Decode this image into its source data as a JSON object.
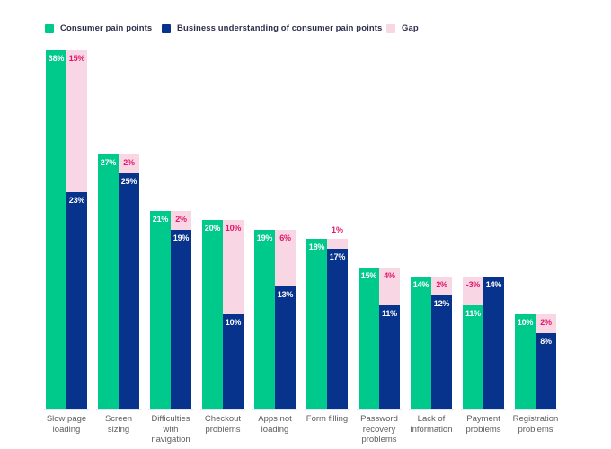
{
  "chart_data": {
    "type": "bar",
    "title": "",
    "categories": [
      "Slow page loading",
      "Screen sizing",
      "Difficulties with navigation",
      "Checkout problems",
      "Apps not loading",
      "Form filling",
      "Password recovery problems",
      "Lack of information",
      "Payment problems",
      "Registration problems"
    ],
    "series": [
      {
        "name": "Consumer pain points",
        "color": "#00c98c",
        "values": [
          38,
          27,
          21,
          20,
          19,
          18,
          15,
          14,
          11,
          10
        ]
      },
      {
        "name": "Business understanding of consumer pain points",
        "color": "#08338c",
        "values": [
          23,
          25,
          19,
          10,
          13,
          17,
          11,
          12,
          14,
          8
        ]
      },
      {
        "name": "Gap",
        "color": "#f8d6e4",
        "label_color": "#e2176b",
        "values": [
          15,
          2,
          2,
          10,
          6,
          1,
          4,
          2,
          -3,
          2
        ]
      }
    ],
    "value_suffix": "%",
    "ylim": [
      0,
      40
    ],
    "grid": false,
    "legend_position": "top",
    "note": "Gap segment is stacked on top of the shorter bar of each pair; negative gap means business value exceeds consumer value"
  },
  "colors": {
    "background": "#ffffff",
    "bar_value_label": "#ffffff",
    "axis_label": "#5c5c5c",
    "legend_text": "#2e2e4e",
    "baseline": "#dde5f7"
  }
}
